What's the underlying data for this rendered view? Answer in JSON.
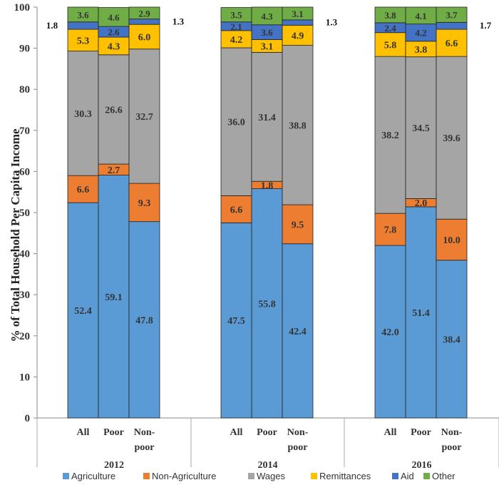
{
  "chart_data": {
    "type": "bar",
    "stacked": true,
    "ylabel": "% of Total Household Per Capita Income",
    "ylim": [
      0,
      100
    ],
    "yticks": [
      0,
      10,
      20,
      30,
      40,
      50,
      60,
      70,
      80,
      90,
      100
    ],
    "grid": false,
    "legend_position": "bottom",
    "groups": [
      {
        "year": "2012",
        "bars": [
          {
            "label": "All",
            "values": [
              52.4,
              6.6,
              30.3,
              5.3,
              1.8,
              3.6
            ]
          },
          {
            "label": "Poor",
            "values": [
              59.1,
              2.7,
              26.6,
              4.3,
              2.6,
              4.6
            ]
          },
          {
            "label": "Non-poor",
            "values": [
              47.8,
              9.3,
              32.7,
              6.0,
              1.3,
              2.9
            ]
          }
        ]
      },
      {
        "year": "2014",
        "bars": [
          {
            "label": "All",
            "values": [
              47.5,
              6.6,
              36.0,
              4.2,
              2.1,
              3.5
            ]
          },
          {
            "label": "Poor",
            "values": [
              55.8,
              1.8,
              31.4,
              3.1,
              3.6,
              4.3
            ]
          },
          {
            "label": "Non-poor",
            "values": [
              42.4,
              9.5,
              38.8,
              4.9,
              1.3,
              3.1
            ]
          }
        ]
      },
      {
        "year": "2016",
        "bars": [
          {
            "label": "All",
            "values": [
              42.0,
              7.8,
              38.2,
              5.8,
              2.4,
              3.8
            ]
          },
          {
            "label": "Poor",
            "values": [
              51.4,
              2.0,
              34.5,
              3.8,
              4.2,
              4.1
            ]
          },
          {
            "label": "Non-poor",
            "values": [
              38.4,
              10.0,
              39.6,
              6.6,
              1.7,
              3.7
            ]
          }
        ]
      }
    ],
    "series": [
      {
        "name": "Agriculture",
        "color": "#5b9bd5"
      },
      {
        "name": "Non-Agriculture",
        "color": "#ed7d31"
      },
      {
        "name": "Wages",
        "color": "#a5a5a5"
      },
      {
        "name": "Remittances",
        "color": "#ffc000"
      },
      {
        "name": "Aid",
        "color": "#4472c4"
      },
      {
        "name": "Other",
        "color": "#70ad47"
      }
    ]
  }
}
